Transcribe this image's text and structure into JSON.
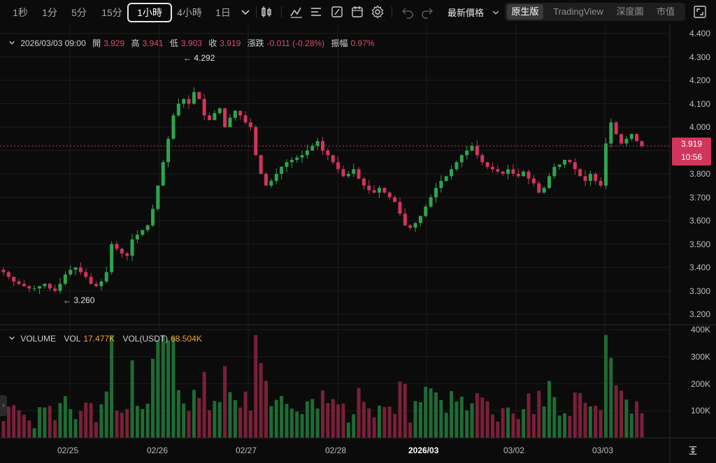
{
  "toolbar": {
    "timeframes": [
      "1秒",
      "1分",
      "5分",
      "15分",
      "1小時",
      "4小時",
      "1日"
    ],
    "active_timeframe": "1小時",
    "price_type": "最新價格",
    "views": [
      "原生版",
      "TradingView",
      "深度圖",
      "市值"
    ],
    "active_view": "原生版",
    "icons": [
      "chevron-down-icon",
      "candle-type-icon",
      "indicator-icon",
      "drawing-list-icon",
      "shape-tool-icon",
      "calendar-icon",
      "settings-icon",
      "undo-icon",
      "redo-icon",
      "fullscreen-icon"
    ]
  },
  "ohlc": {
    "datetime": "2026/03/03 09:00",
    "open_label": "開",
    "open": "3.929",
    "high_label": "高",
    "high": "3.941",
    "low_label": "低",
    "low": "3.903",
    "close_label": "收",
    "close": "3.919",
    "change_label": "漲跌",
    "change": "-0.011 (-0.28%)",
    "amp_label": "振幅",
    "amp": "0.97%"
  },
  "volume_legend": {
    "title": "VOLUME",
    "vol_label": "VOL",
    "vol": "17.477K",
    "vol_usdt_label": "VOL(USDT)",
    "vol_usdt": "68.504K"
  },
  "current_price": {
    "price": "3.919",
    "countdown": "10:56"
  },
  "annotations": {
    "high": "← 4.292",
    "low": "← 3.260"
  },
  "colors": {
    "up": "#2ea44f",
    "down": "#d2355c",
    "background": "#0b0b0b",
    "grid": "#1c1c1c"
  },
  "chart_data": {
    "type": "candlestick",
    "price_axis": [
      "4.400",
      "4.300",
      "4.200",
      "4.100",
      "4.000",
      "3.900",
      "3.800",
      "3.700",
      "3.600",
      "3.500",
      "3.400",
      "3.300",
      "3.200"
    ],
    "price_ylim": [
      3.15,
      4.42
    ],
    "volume_axis": [
      "400K",
      "300K",
      "200K",
      "100K"
    ],
    "volume_ylim": [
      0,
      400000
    ],
    "x_labels": [
      "02/25",
      "02/26",
      "02/27",
      "02/28",
      "2026/03",
      "03/02",
      "03/03"
    ],
    "highlight_x_label": "2026/03",
    "interval": "1h",
    "close_path": [
      3.38,
      3.36,
      3.34,
      3.33,
      3.32,
      3.31,
      3.31,
      3.32,
      3.33,
      3.31,
      3.3,
      3.33,
      3.37,
      3.39,
      3.4,
      3.38,
      3.36,
      3.33,
      3.32,
      3.34,
      3.38,
      3.5,
      3.48,
      3.46,
      3.45,
      3.52,
      3.54,
      3.56,
      3.58,
      3.65,
      3.75,
      3.85,
      3.95,
      4.05,
      4.1,
      4.12,
      4.1,
      4.15,
      4.12,
      4.05,
      4.03,
      4.06,
      4.08,
      4.0,
      4.04,
      4.07,
      4.05,
      4.02,
      4.0,
      3.88,
      3.8,
      3.75,
      3.77,
      3.8,
      3.83,
      3.85,
      3.86,
      3.87,
      3.88,
      3.9,
      3.92,
      3.94,
      3.9,
      3.88,
      3.85,
      3.82,
      3.79,
      3.8,
      3.82,
      3.78,
      3.75,
      3.73,
      3.72,
      3.74,
      3.72,
      3.7,
      3.68,
      3.63,
      3.58,
      3.57,
      3.59,
      3.62,
      3.66,
      3.7,
      3.74,
      3.77,
      3.79,
      3.82,
      3.85,
      3.88,
      3.9,
      3.92,
      3.88,
      3.85,
      3.83,
      3.82,
      3.81,
      3.8,
      3.82,
      3.8,
      3.79,
      3.81,
      3.78,
      3.76,
      3.72,
      3.74,
      3.79,
      3.83,
      3.84,
      3.86,
      3.85,
      3.82,
      3.79,
      3.77,
      3.8,
      3.77,
      3.75,
      3.93,
      4.02,
      3.97,
      3.93,
      3.95,
      3.97,
      3.94,
      3.92
    ]
  }
}
